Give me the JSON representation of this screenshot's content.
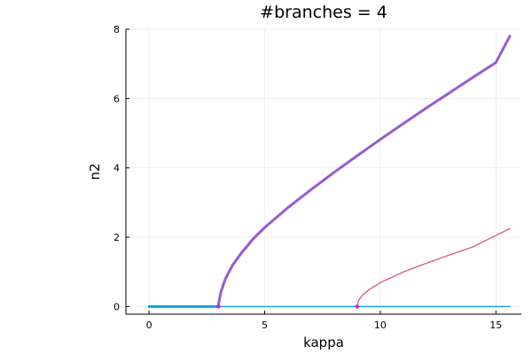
{
  "chart_data": {
    "type": "line",
    "title": "#branches = 4",
    "xlabel": "kappa",
    "ylabel": "n2",
    "xlim": [
      -1,
      16.1
    ],
    "ylim": [
      -0.22,
      8
    ],
    "x_ticks": [
      0,
      5,
      10,
      15
    ],
    "y_ticks": [
      0,
      2,
      4,
      6,
      8
    ],
    "grid": true,
    "legend": "none",
    "series": [
      {
        "style": "thin",
        "color": "#009AFA",
        "points": [
          [
            0,
            0
          ],
          [
            15.6,
            0
          ]
        ]
      },
      {
        "style": "thick",
        "color": "#00A9D6",
        "points": [
          [
            0,
            0
          ],
          [
            3.0,
            0
          ]
        ]
      },
      {
        "style": "thin",
        "color": "#E3557A",
        "points": [
          [
            9.0,
            0
          ],
          [
            9.05,
            0.16
          ],
          [
            9.2,
            0.31
          ],
          [
            9.5,
            0.48
          ],
          [
            10.0,
            0.69
          ],
          [
            11.0,
            1.0
          ],
          [
            12.0,
            1.25
          ],
          [
            13.0,
            1.49
          ],
          [
            14.0,
            1.72
          ],
          [
            15.0,
            2.05
          ],
          [
            15.6,
            2.25
          ]
        ]
      },
      {
        "style": "thick",
        "color": "#9B59D0",
        "points": [
          [
            3.0,
            0
          ],
          [
            3.02,
            0.12
          ],
          [
            3.1,
            0.4
          ],
          [
            3.3,
            0.8
          ],
          [
            3.6,
            1.18
          ],
          [
            4.0,
            1.55
          ],
          [
            4.5,
            1.95
          ],
          [
            5.0,
            2.28
          ],
          [
            6.0,
            2.85
          ],
          [
            7.0,
            3.37
          ],
          [
            8.0,
            3.87
          ],
          [
            9.0,
            4.35
          ],
          [
            10.0,
            4.82
          ],
          [
            11.0,
            5.28
          ],
          [
            12.0,
            5.73
          ],
          [
            13.0,
            6.17
          ],
          [
            14.0,
            6.61
          ],
          [
            15.0,
            7.04
          ],
          [
            15.6,
            7.8
          ]
        ]
      }
    ],
    "points": [
      {
        "x": 3.0,
        "y": 0,
        "color": "#E21CD0"
      },
      {
        "x": 9.0,
        "y": 0,
        "color": "#E21CD0"
      }
    ]
  }
}
